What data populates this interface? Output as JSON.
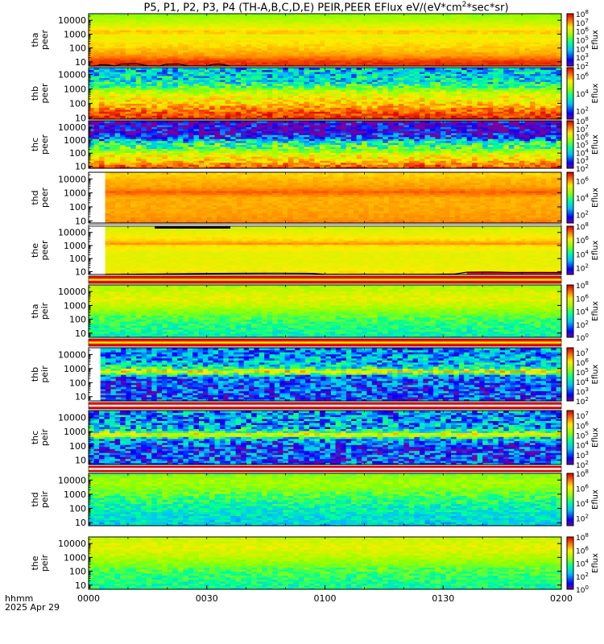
{
  "title_prefix": "P5, P1, P2, P3, P4 (TH-A,B,C,D,E) PEIR,PEER EFlux eV/(eV*cm",
  "title_sup": "2",
  "title_suffix": "*sec*sr)",
  "time_label": "hhmm",
  "date_label": "2025 Apr 29",
  "x_axis": {
    "ticks": [
      "0000",
      "0030",
      "0100",
      "0130",
      "0200"
    ],
    "tick_hours": [
      0,
      0.5,
      1.0,
      1.5,
      2.0
    ],
    "range_hours": [
      0,
      2.0
    ]
  },
  "colorbar_label": "Eflux",
  "chart_data": [
    {
      "type": "heatmap",
      "probe_label": "tha",
      "species_label": "peer",
      "y_scale": "log",
      "y_range": [
        5,
        30000
      ],
      "y_ticks": [
        "10000",
        "1000",
        "100",
        "10"
      ],
      "y_tick_values": [
        10000,
        1000,
        100,
        10
      ],
      "cbar_ticks": [
        "10^8",
        "10^7",
        "10^6",
        "10^5",
        "10^4",
        "10^3",
        "10^2"
      ],
      "cbar_exponents": [
        8,
        7,
        6,
        5,
        4,
        3,
        2
      ],
      "cbar_range": [
        2,
        8
      ],
      "profile": [
        [
          5,
          7.6
        ],
        [
          10,
          7.7
        ],
        [
          30,
          7.0
        ],
        [
          100,
          6.7
        ],
        [
          300,
          6.5
        ],
        [
          800,
          6.3
        ],
        [
          1500,
          6.8
        ],
        [
          2500,
          6.4
        ],
        [
          8000,
          6.0
        ],
        [
          30000,
          5.5
        ]
      ],
      "noise": 0.15,
      "data_start_hour": 0,
      "overlay_line": true,
      "overlay_points": [
        [
          0,
          5
        ],
        [
          0.03,
          5
        ],
        [
          0.05,
          6.2
        ],
        [
          0.08,
          6.0
        ],
        [
          0.11,
          5
        ],
        [
          0.14,
          6.8
        ],
        [
          0.2,
          7.3
        ],
        [
          0.25,
          5.2
        ],
        [
          0.3,
          5
        ],
        [
          0.33,
          6.8
        ],
        [
          0.38,
          7
        ],
        [
          0.42,
          5.2
        ],
        [
          0.5,
          5
        ],
        [
          0.52,
          6.3
        ],
        [
          0.55,
          7
        ],
        [
          0.6,
          5
        ]
      ]
    },
    {
      "type": "heatmap",
      "probe_label": "thb",
      "species_label": "peer",
      "y_scale": "log",
      "y_range": [
        8,
        30000
      ],
      "y_ticks": [
        "10000",
        "1000",
        "100",
        "10"
      ],
      "y_tick_values": [
        10000,
        1000,
        100,
        10
      ],
      "cbar_ticks": [
        "10^6",
        "10^4",
        "10^2"
      ],
      "cbar_exponents": [
        6,
        4,
        2
      ],
      "cbar_range": [
        1,
        7
      ],
      "profile": [
        [
          8,
          6.8
        ],
        [
          15,
          6.6
        ],
        [
          40,
          6.2
        ],
        [
          120,
          5.6
        ],
        [
          300,
          5.3
        ],
        [
          700,
          4.9
        ],
        [
          1500,
          4.0
        ],
        [
          3000,
          3.4
        ],
        [
          8000,
          3.1
        ],
        [
          30000,
          2.9
        ]
      ],
      "noise": 0.5,
      "data_start_hour": 0,
      "overlay_line": false
    },
    {
      "type": "heatmap",
      "probe_label": "thc",
      "species_label": "peer",
      "y_scale": "log",
      "y_range": [
        7,
        30000
      ],
      "y_ticks": [
        "10000",
        "1000",
        "100",
        "10"
      ],
      "y_tick_values": [
        10000,
        1000,
        100,
        10
      ],
      "cbar_ticks": [
        "10^8",
        "10^7",
        "10^6",
        "10^5",
        "10^4",
        "10^3",
        "10^2"
      ],
      "cbar_exponents": [
        8,
        7,
        6,
        5,
        4,
        3,
        2
      ],
      "cbar_range": [
        2,
        8
      ],
      "profile": [
        [
          7,
          7.6
        ],
        [
          12,
          7.3
        ],
        [
          30,
          6.6
        ],
        [
          80,
          6.2
        ],
        [
          200,
          5.4
        ],
        [
          400,
          4.9
        ],
        [
          700,
          4.6
        ],
        [
          1500,
          3.2
        ],
        [
          4000,
          2.4
        ],
        [
          30000,
          2.2
        ]
      ],
      "noise": 0.6,
      "data_start_hour": 0,
      "overlay_line": false
    },
    {
      "type": "heatmap",
      "probe_label": "thd",
      "species_label": "peer",
      "y_scale": "log",
      "y_range": [
        7,
        30000
      ],
      "y_ticks": [
        "10000",
        "1000",
        "100",
        "10"
      ],
      "y_tick_values": [
        10000,
        1000,
        100,
        10
      ],
      "cbar_ticks": [
        "10^6",
        "10^4",
        "10^2"
      ],
      "cbar_exponents": [
        6,
        4,
        2
      ],
      "cbar_range": [
        1,
        7
      ],
      "profile": [
        [
          7,
          6.2
        ],
        [
          20,
          6.0
        ],
        [
          100,
          5.9
        ],
        [
          500,
          5.9
        ],
        [
          1200,
          6.4
        ],
        [
          2500,
          6.0
        ],
        [
          10000,
          5.8
        ],
        [
          30000,
          5.6
        ]
      ],
      "noise": 0.12,
      "data_start_hour": 0.07,
      "overlay_line": false
    },
    {
      "type": "heatmap",
      "probe_label": "the",
      "species_label": "peer",
      "y_scale": "log",
      "y_range": [
        6,
        30000
      ],
      "y_ticks": [
        "10000",
        "1000",
        "100",
        "10"
      ],
      "y_tick_values": [
        10000,
        1000,
        100,
        10
      ],
      "cbar_ticks": [
        "10^8",
        "10^6",
        "10^4",
        "10^2"
      ],
      "cbar_exponents": [
        8,
        6,
        4,
        2
      ],
      "cbar_range": [
        1,
        8
      ],
      "profile": [
        [
          6,
          6.6
        ],
        [
          15,
          6.1
        ],
        [
          60,
          6.0
        ],
        [
          300,
          6.0
        ],
        [
          1000,
          6.3
        ],
        [
          1500,
          6.9
        ],
        [
          2500,
          6.4
        ],
        [
          10000,
          6.0
        ],
        [
          30000,
          5.8
        ]
      ],
      "noise": 0.12,
      "data_start_hour": 0.07,
      "overlay_line": true,
      "overlay_points": [
        [
          0.07,
          6
        ],
        [
          0.3,
          6.6
        ],
        [
          0.55,
          7.3
        ],
        [
          0.8,
          7.6
        ],
        [
          0.95,
          7.3
        ],
        [
          1.0,
          6.2
        ],
        [
          1.45,
          6.1
        ],
        [
          1.55,
          6.5
        ],
        [
          1.6,
          9.0
        ],
        [
          1.7,
          9.3
        ],
        [
          1.8,
          8.6
        ],
        [
          1.9,
          8.8
        ],
        [
          2.0,
          8.5
        ]
      ],
      "overlay_fill_from_hour": 1.6
    }
  ],
  "ion_panels": [
    {
      "type": "heatmap",
      "probe_label": "tha",
      "species_label": "peir",
      "y_scale": "log",
      "y_range": [
        5,
        30000
      ],
      "y_ticks": [
        "10000",
        "1000",
        "100",
        "10"
      ],
      "y_tick_values": [
        10000,
        1000,
        100,
        10
      ],
      "cbar_ticks": [
        "10^8",
        "10^6",
        "10^4",
        "10^2",
        "10^0"
      ],
      "cbar_exponents": [
        8,
        6,
        4,
        2,
        0
      ],
      "cbar_range": [
        0,
        8
      ],
      "profile": [
        [
          5,
          3.4
        ],
        [
          20,
          3.6
        ],
        [
          80,
          4.0
        ],
        [
          300,
          4.6
        ],
        [
          1000,
          5.2
        ],
        [
          3000,
          5.7
        ],
        [
          8000,
          5.5
        ],
        [
          30000,
          5.0
        ]
      ],
      "noise": 0.3,
      "data_start_hour": 0,
      "overlay_line": false
    },
    {
      "type": "heatmap",
      "probe_label": "thb",
      "species_label": "peir",
      "y_scale": "log",
      "y_range": [
        5,
        30000
      ],
      "y_ticks": [
        "10000",
        "1000",
        "100",
        "10"
      ],
      "y_tick_values": [
        10000,
        1000,
        100,
        10
      ],
      "cbar_ticks": [
        "10^7",
        "10^6",
        "10^5",
        "10^4",
        "10^3",
        "10^2"
      ],
      "cbar_exponents": [
        7,
        6,
        5,
        4,
        3,
        2
      ],
      "cbar_range": [
        2,
        7.5
      ],
      "profile": [
        [
          5,
          3.0
        ],
        [
          50,
          3.0
        ],
        [
          250,
          3.2
        ],
        [
          400,
          4.2
        ],
        [
          600,
          6.5
        ],
        [
          900,
          5.0
        ],
        [
          1500,
          4.0
        ],
        [
          4000,
          3.6
        ],
        [
          30000,
          3.3
        ]
      ],
      "noise": 0.5,
      "data_start_hour": 0.05,
      "overlay_line": false
    },
    {
      "type": "heatmap",
      "probe_label": "thc",
      "species_label": "peir",
      "y_scale": "log",
      "y_range": [
        5,
        30000
      ],
      "y_ticks": [
        "10000",
        "1000",
        "100",
        "10"
      ],
      "y_tick_values": [
        10000,
        1000,
        100,
        10
      ],
      "cbar_ticks": [
        "10^7",
        "10^6",
        "10^5",
        "10^4",
        "10^3",
        "10^2"
      ],
      "cbar_exponents": [
        7,
        6,
        5,
        4,
        3,
        2
      ],
      "cbar_range": [
        2,
        7.5
      ],
      "profile": [
        [
          5,
          3.0
        ],
        [
          80,
          3.0
        ],
        [
          250,
          3.4
        ],
        [
          450,
          4.5
        ],
        [
          650,
          6.6
        ],
        [
          900,
          5.0
        ],
        [
          1800,
          3.8
        ],
        [
          5000,
          3.5
        ],
        [
          30000,
          3.4
        ]
      ],
      "noise": 0.55,
      "data_start_hour": 0,
      "overlay_line": false
    },
    {
      "type": "heatmap",
      "probe_label": "thd",
      "species_label": "peir",
      "y_scale": "log",
      "y_range": [
        6,
        30000
      ],
      "y_ticks": [
        "10000",
        "1000",
        "100",
        "10"
      ],
      "y_tick_values": [
        10000,
        1000,
        100,
        10
      ],
      "cbar_ticks": [
        "10^8",
        "10^6",
        "10^4",
        "10^2"
      ],
      "cbar_exponents": [
        8,
        6,
        4,
        2
      ],
      "cbar_range": [
        1,
        8
      ],
      "profile": [
        [
          6,
          3.4
        ],
        [
          30,
          3.6
        ],
        [
          150,
          4.0
        ],
        [
          600,
          4.5
        ],
        [
          2500,
          5.1
        ],
        [
          8000,
          5.4
        ],
        [
          30000,
          5.0
        ]
      ],
      "noise": 0.3,
      "data_start_hour": 0,
      "overlay_line": false
    },
    {
      "type": "heatmap",
      "probe_label": "the",
      "species_label": "peir",
      "y_scale": "log",
      "y_range": [
        5,
        30000
      ],
      "y_ticks": [
        "10000",
        "1000",
        "100",
        "10"
      ],
      "y_tick_values": [
        10000,
        1000,
        100,
        10
      ],
      "cbar_ticks": [
        "10^8",
        "10^6",
        "10^4",
        "10^2",
        "10^0"
      ],
      "cbar_exponents": [
        8,
        6,
        4,
        2,
        0
      ],
      "cbar_range": [
        0,
        8
      ],
      "profile": [
        [
          5,
          3.5
        ],
        [
          30,
          3.8
        ],
        [
          150,
          4.3
        ],
        [
          600,
          4.9
        ],
        [
          2000,
          5.4
        ],
        [
          6000,
          5.7
        ],
        [
          30000,
          5.3
        ]
      ],
      "noise": 0.3,
      "data_start_hour": 0,
      "overlay_line": false
    }
  ],
  "colors": {
    "flag_red": "#ff0000",
    "flag_yellow": "#ffff00",
    "flag_white": "#ffffff",
    "overlay": "#000000"
  },
  "flag_bars": [
    {
      "after_panel": 4,
      "segments": [
        [
          0,
          2.0,
          "#ffffff"
        ]
      ],
      "black_segment_hours": [
        0.28,
        0.6
      ]
    },
    {
      "after_panel": 5,
      "segments": [
        [
          0,
          2.0,
          "#ffff00"
        ]
      ]
    },
    {
      "after_panel": 6,
      "segments": [
        [
          0,
          2.0,
          "#ffff00"
        ]
      ]
    },
    {
      "after_panel": 7,
      "segments": [
        [
          0,
          2.0,
          "#ffffff"
        ]
      ]
    },
    {
      "after_panel": 8,
      "segments": [
        [
          0,
          2.0,
          "#ffffff"
        ]
      ]
    }
  ]
}
